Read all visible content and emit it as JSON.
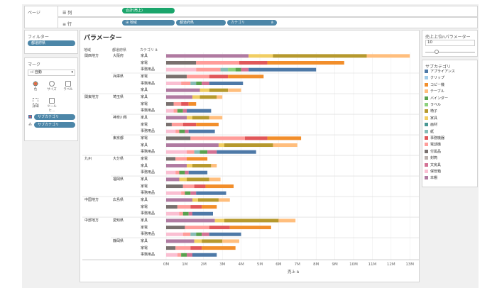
{
  "pages_label": "ページ",
  "filters": {
    "title": "フィルター",
    "pill": "都道府県"
  },
  "marks": {
    "title": "マーク",
    "type_label": "自動",
    "buttons": [
      "色",
      "サイズ",
      "ラベル",
      "詳細",
      "ツールヒ..."
    ],
    "pills": [
      "サブカテゴリ",
      "サブカテゴリ"
    ]
  },
  "shelves": {
    "columns_label": "列",
    "columns_pill": "合計(売上)",
    "rows_label": "行",
    "rows_pills": [
      "地域",
      "都道府県",
      "カテゴリ"
    ]
  },
  "sheet": {
    "title": "パラメーター",
    "headers": [
      "地域",
      "都道府県",
      "カテゴリ"
    ],
    "xlabel": "売上",
    "ticks": [
      "0M",
      "1M",
      "2M",
      "3M",
      "4M",
      "5M",
      "6M",
      "7M",
      "8M",
      "9M",
      "10M",
      "11M",
      "12M",
      "13M"
    ]
  },
  "parameter": {
    "title": "売上上位nパラメーター",
    "value": "10",
    "slider": 0.2
  },
  "legend": {
    "title": "サブカテゴリ",
    "items": [
      {
        "name": "アプライアンス",
        "color": "#4e79a7"
      },
      {
        "name": "クリップ",
        "color": "#a0cbe8"
      },
      {
        "name": "コピー機",
        "color": "#f28e2b"
      },
      {
        "name": "テーブル",
        "color": "#ffbe7d"
      },
      {
        "name": "バインダー",
        "color": "#59a14f"
      },
      {
        "name": "ラベル",
        "color": "#8cd17d"
      },
      {
        "name": "椅子",
        "color": "#b6992d"
      },
      {
        "name": "家具",
        "color": "#f1ce63"
      },
      {
        "name": "画材",
        "color": "#499894"
      },
      {
        "name": "紙",
        "color": "#86bcb6"
      },
      {
        "name": "事務機器",
        "color": "#e15759"
      },
      {
        "name": "電話機",
        "color": "#ff9d9a"
      },
      {
        "name": "付属品",
        "color": "#79706e"
      },
      {
        "name": "封筒",
        "color": "#bab0ac"
      },
      {
        "name": "文房具",
        "color": "#d37295"
      },
      {
        "name": "保管箱",
        "color": "#fabfd2"
      },
      {
        "name": "本棚",
        "color": "#b07aa1"
      }
    ]
  },
  "chart_data": {
    "type": "bar",
    "xlabel": "売上",
    "xlim": [
      0,
      13
    ],
    "rows": [
      {
        "region": "関西地方",
        "pref": "大阪府",
        "cat": "家具",
        "segs": [
          [
            16,
            4.4
          ],
          [
            7,
            1.3
          ],
          [
            6,
            5.0
          ],
          [
            3,
            2.3
          ]
        ]
      },
      {
        "region": "",
        "pref": "",
        "cat": "家電",
        "segs": [
          [
            12,
            1.6
          ],
          [
            11,
            2.3
          ],
          [
            10,
            1.5
          ],
          [
            2,
            4.1
          ]
        ]
      },
      {
        "region": "",
        "pref": "",
        "cat": "事務用品",
        "segs": [
          [
            15,
            1.6
          ],
          [
            11,
            1.3
          ],
          [
            9,
            0.4
          ],
          [
            5,
            0.4
          ],
          [
            4,
            0.3
          ],
          [
            14,
            0.4
          ],
          [
            0,
            3.6
          ]
        ]
      },
      {
        "region": "",
        "pref": "兵庫県",
        "cat": "家電",
        "segs": [
          [
            12,
            1.1
          ],
          [
            11,
            1.2
          ],
          [
            10,
            1.0
          ],
          [
            2,
            1.9
          ]
        ]
      },
      {
        "region": "",
        "pref": "",
        "cat": "事務用品",
        "segs": [
          [
            15,
            0.8
          ],
          [
            11,
            0.5
          ],
          [
            9,
            0.3
          ],
          [
            4,
            0.3
          ],
          [
            14,
            0.4
          ],
          [
            0,
            1.8
          ]
        ]
      },
      {
        "region": "",
        "pref": "",
        "cat": "家具",
        "segs": [
          [
            16,
            1.8
          ],
          [
            7,
            0.5
          ],
          [
            6,
            1.0
          ],
          [
            3,
            0.7
          ]
        ]
      },
      {
        "region": "関東地方",
        "pref": "埼玉県",
        "cat": "家具",
        "segs": [
          [
            16,
            1.4
          ],
          [
            7,
            0.4
          ],
          [
            6,
            0.9
          ],
          [
            3,
            0.3
          ]
        ]
      },
      {
        "region": "",
        "pref": "",
        "cat": "家電",
        "segs": [
          [
            12,
            0.4
          ],
          [
            11,
            0.4
          ],
          [
            10,
            0.4
          ],
          [
            2,
            0.4
          ]
        ]
      },
      {
        "region": "",
        "pref": "",
        "cat": "事務用品",
        "segs": [
          [
            15,
            0.4
          ],
          [
            11,
            0.2
          ],
          [
            4,
            0.3
          ],
          [
            14,
            0.2
          ],
          [
            0,
            1.3
          ]
        ]
      },
      {
        "region": "",
        "pref": "神奈川県",
        "cat": "家具",
        "segs": [
          [
            16,
            1.1
          ],
          [
            7,
            0.3
          ],
          [
            6,
            0.9
          ],
          [
            3,
            0.7
          ]
        ]
      },
      {
        "region": "",
        "pref": "",
        "cat": "家電",
        "segs": [
          [
            12,
            0.3
          ],
          [
            11,
            0.6
          ],
          [
            10,
            0.7
          ],
          [
            2,
            1.2
          ]
        ]
      },
      {
        "region": "",
        "pref": "",
        "cat": "事務用品",
        "segs": [
          [
            15,
            0.5
          ],
          [
            11,
            0.2
          ],
          [
            4,
            0.3
          ],
          [
            14,
            0.2
          ],
          [
            0,
            1.4
          ]
        ]
      },
      {
        "region": "",
        "pref": "東京都",
        "cat": "家電",
        "segs": [
          [
            12,
            1.3
          ],
          [
            11,
            2.9
          ],
          [
            10,
            1.2
          ],
          [
            2,
            1.8
          ]
        ]
      },
      {
        "region": "",
        "pref": "",
        "cat": "家具",
        "segs": [
          [
            16,
            2.8
          ],
          [
            7,
            0.3
          ],
          [
            6,
            2.6
          ],
          [
            3,
            1.3
          ]
        ]
      },
      {
        "region": "",
        "pref": "",
        "cat": "事務用品",
        "segs": [
          [
            15,
            1.1
          ],
          [
            11,
            0.4
          ],
          [
            9,
            0.3
          ],
          [
            4,
            0.4
          ],
          [
            14,
            0.5
          ],
          [
            0,
            2.1
          ]
        ]
      },
      {
        "region": "九州",
        "pref": "大分県",
        "cat": "家電",
        "segs": [
          [
            12,
            0.5
          ],
          [
            11,
            0.6
          ],
          [
            2,
            1.1
          ]
        ]
      },
      {
        "region": "",
        "pref": "",
        "cat": "家具",
        "segs": [
          [
            16,
            1.1
          ],
          [
            7,
            0.3
          ],
          [
            6,
            1.0
          ],
          [
            3,
            0.3
          ]
        ]
      },
      {
        "region": "",
        "pref": "",
        "cat": "事務用品",
        "segs": [
          [
            15,
            0.5
          ],
          [
            11,
            0.2
          ],
          [
            4,
            0.3
          ],
          [
            14,
            0.2
          ],
          [
            0,
            1.0
          ]
        ]
      },
      {
        "region": "",
        "pref": "福岡県",
        "cat": "家具",
        "segs": [
          [
            16,
            0.7
          ],
          [
            7,
            0.4
          ],
          [
            6,
            1.2
          ],
          [
            3,
            0.6
          ]
        ]
      },
      {
        "region": "",
        "pref": "",
        "cat": "家電",
        "segs": [
          [
            12,
            0.9
          ],
          [
            11,
            0.6
          ],
          [
            10,
            0.6
          ],
          [
            2,
            1.5
          ]
        ]
      },
      {
        "region": "",
        "pref": "",
        "cat": "事務用品",
        "segs": [
          [
            15,
            0.8
          ],
          [
            11,
            0.2
          ],
          [
            4,
            0.3
          ],
          [
            14,
            0.3
          ],
          [
            0,
            1.6
          ]
        ]
      },
      {
        "region": "中国地方",
        "pref": "広島県",
        "cat": "家具",
        "segs": [
          [
            16,
            1.4
          ],
          [
            7,
            0.3
          ],
          [
            6,
            1.1
          ],
          [
            3,
            0.6
          ]
        ]
      },
      {
        "region": "",
        "pref": "",
        "cat": "家電",
        "segs": [
          [
            12,
            0.6
          ],
          [
            11,
            0.7
          ],
          [
            10,
            0.6
          ],
          [
            2,
            0.8
          ]
        ]
      },
      {
        "region": "",
        "pref": "",
        "cat": "事務用品",
        "segs": [
          [
            15,
            0.7
          ],
          [
            11,
            0.2
          ],
          [
            4,
            0.3
          ],
          [
            14,
            0.2
          ],
          [
            0,
            1.1
          ]
        ]
      },
      {
        "region": "中部地方",
        "pref": "愛知県",
        "cat": "家具",
        "segs": [
          [
            16,
            2.6
          ],
          [
            7,
            0.5
          ],
          [
            6,
            2.9
          ],
          [
            3,
            0.9
          ]
        ]
      },
      {
        "region": "",
        "pref": "",
        "cat": "家電",
        "segs": [
          [
            12,
            1.0
          ],
          [
            11,
            1.3
          ],
          [
            10,
            1.1
          ],
          [
            2,
            2.2
          ]
        ]
      },
      {
        "region": "",
        "pref": "",
        "cat": "事務用品",
        "segs": [
          [
            15,
            0.9
          ],
          [
            11,
            0.4
          ],
          [
            9,
            0.3
          ],
          [
            4,
            0.3
          ],
          [
            14,
            0.4
          ],
          [
            0,
            1.7
          ]
        ]
      },
      {
        "region": "",
        "pref": "静岡県",
        "cat": "家具",
        "segs": [
          [
            16,
            1.5
          ],
          [
            7,
            0.4
          ],
          [
            6,
            1.1
          ],
          [
            3,
            0.9
          ]
        ]
      },
      {
        "region": "",
        "pref": "",
        "cat": "家電",
        "segs": [
          [
            12,
            0.5
          ],
          [
            11,
            0.8
          ],
          [
            10,
            0.6
          ],
          [
            2,
            1.8
          ]
        ]
      },
      {
        "region": "",
        "pref": "",
        "cat": "事務用品",
        "segs": [
          [
            15,
            0.6
          ],
          [
            11,
            0.2
          ],
          [
            4,
            0.3
          ],
          [
            14,
            0.3
          ],
          [
            0,
            1.3
          ]
        ]
      }
    ]
  }
}
